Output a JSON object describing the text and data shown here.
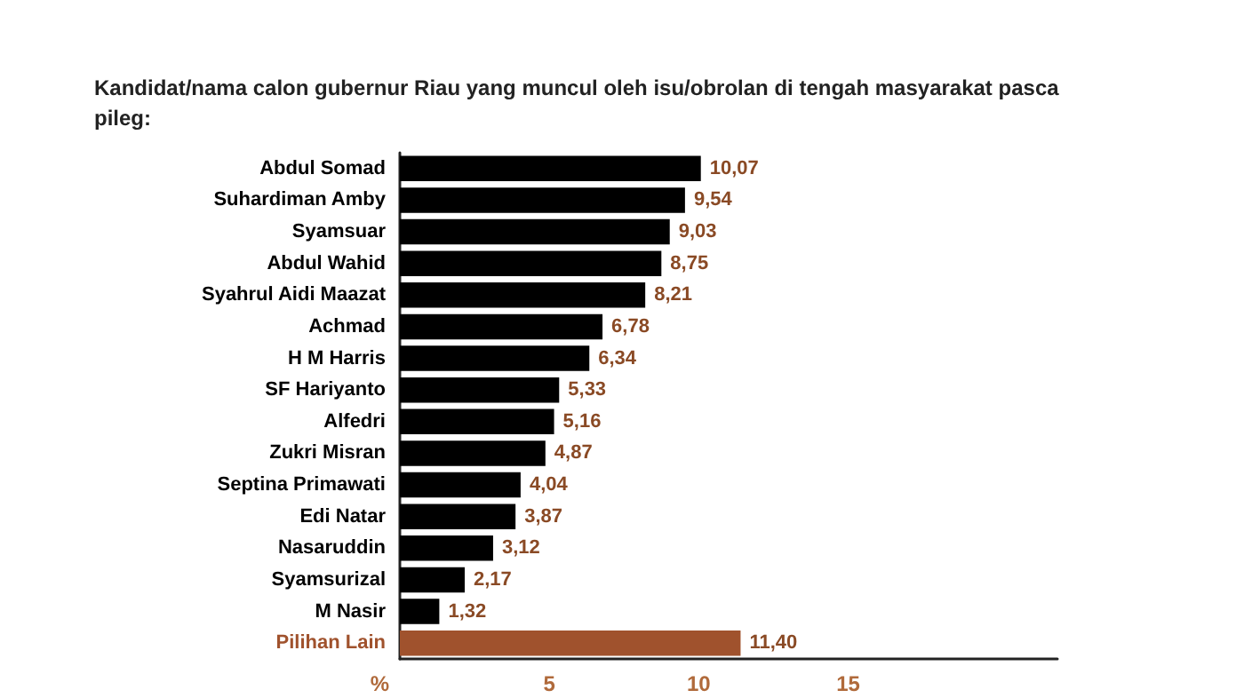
{
  "chart_data": {
    "type": "bar",
    "orientation": "horizontal",
    "title": "Kandidat/nama calon gubernur Riau yang muncul oleh isu/obrolan di tengah masyarakat pasca pileg:",
    "xlabel": "%",
    "categories": [
      "Abdul Somad",
      "Suhardiman Amby",
      "Syamsuar",
      "Abdul Wahid",
      "Syahrul Aidi Maazat",
      "Achmad",
      "H M Harris",
      "SF Hariyanto",
      "Alfedri",
      "Zukri Misran",
      "Septina Primawati",
      "Edi Natar",
      "Nasaruddin",
      "Syamsurizal",
      "M Nasir",
      "Pilihan Lain"
    ],
    "values": [
      10.07,
      9.54,
      9.03,
      8.75,
      8.21,
      6.78,
      6.34,
      5.33,
      5.16,
      4.87,
      4.04,
      3.87,
      3.12,
      2.17,
      1.32,
      11.4
    ],
    "value_labels": [
      "10,07",
      "9,54",
      "9,03",
      "8,75",
      "8,21",
      "6,78",
      "6,34",
      "5,33",
      "5,16",
      "4,87",
      "4,04",
      "3,87",
      "3,12",
      "2,17",
      "1,32",
      "11,40"
    ],
    "colors": [
      "#000000",
      "#000000",
      "#000000",
      "#000000",
      "#000000",
      "#000000",
      "#000000",
      "#000000",
      "#000000",
      "#000000",
      "#000000",
      "#000000",
      "#000000",
      "#000000",
      "#000000",
      "#a0522d"
    ],
    "xlim": [
      0,
      22
    ],
    "xticks": [
      5,
      10,
      15
    ],
    "grid": false
  }
}
